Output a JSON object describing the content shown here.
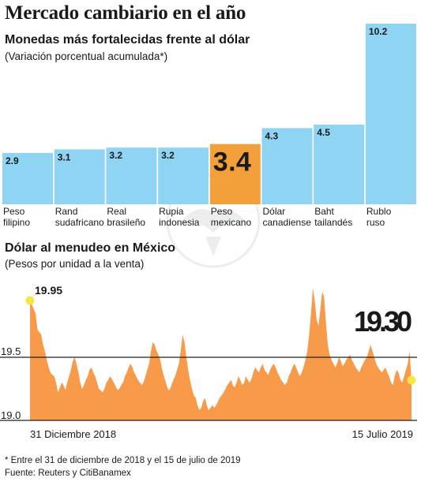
{
  "header": {
    "title": "Mercado cambiario en el año"
  },
  "chart_data": [
    {
      "type": "bar",
      "title": "Monedas más fortalecidas frente al dólar",
      "subtitle": "(Variación porcentual acumulada*)",
      "categories": [
        [
          "Peso",
          "filipino"
        ],
        [
          "Rand",
          "sudafricano"
        ],
        [
          "Real",
          "brasileño"
        ],
        [
          "Rupia",
          "indonesia"
        ],
        [
          "Peso",
          "mexicano"
        ],
        [
          "Dólar",
          "canadiense"
        ],
        [
          "Baht",
          "tailandés"
        ],
        [
          "Rublo",
          "ruso"
        ]
      ],
      "values": [
        2.9,
        3.1,
        3.2,
        3.2,
        3.4,
        4.3,
        4.5,
        10.2
      ],
      "value_labels": [
        "2.9",
        "3.1",
        "3.2",
        "3.2",
        "3.4",
        "4.3",
        "4.5",
        "10.2"
      ],
      "highlight_index": 4,
      "colors": {
        "bar": "#8fd4f2",
        "highlight": "#f4a03a",
        "text": "#1a1a1a"
      }
    },
    {
      "type": "area",
      "title": "Dólar al menudeo en México",
      "subtitle": "(Pesos por unidad a la venta)",
      "x_start_label": "31 Diciembre 2018",
      "x_end_label": "15 Julio 2019",
      "y_ticks": [
        "19.0",
        "19.5"
      ],
      "ylim": [
        19.0,
        20.0
      ],
      "start_value": 19.95,
      "start_label": "19.95",
      "end_value": 19.3,
      "end_label": "19.30",
      "reference_line": 19.5,
      "values": [
        19.95,
        19.92,
        19.88,
        19.85,
        19.72,
        19.7,
        19.68,
        19.6,
        19.55,
        19.48,
        19.42,
        19.38,
        19.36,
        19.35,
        19.3,
        19.22,
        19.26,
        19.3,
        19.28,
        19.24,
        19.3,
        19.35,
        19.4,
        19.47,
        19.5,
        19.45,
        19.38,
        19.3,
        19.25,
        19.28,
        19.32,
        19.35,
        19.4,
        19.42,
        19.38,
        19.35,
        19.3,
        19.25,
        19.24,
        19.22,
        19.25,
        19.3,
        19.32,
        19.35,
        19.33,
        19.3,
        19.27,
        19.24,
        19.25,
        19.28,
        19.3,
        19.35,
        19.38,
        19.42,
        19.45,
        19.42,
        19.38,
        19.35,
        19.32,
        19.3,
        19.28,
        19.3,
        19.35,
        19.4,
        19.45,
        19.55,
        19.62,
        19.6,
        19.55,
        19.52,
        19.48,
        19.4,
        19.35,
        19.3,
        19.25,
        19.24,
        19.28,
        19.32,
        19.35,
        19.4,
        19.45,
        19.55,
        19.68,
        19.62,
        19.5,
        19.4,
        19.32,
        19.25,
        19.2,
        19.18,
        19.12,
        19.08,
        19.1,
        19.15,
        19.18,
        19.12,
        19.08,
        19.1,
        19.12,
        19.1,
        19.12,
        19.15,
        19.18,
        19.2,
        19.22,
        19.25,
        19.28,
        19.3,
        19.32,
        19.28,
        19.26,
        19.3,
        19.35,
        19.32,
        19.28,
        19.3,
        19.35,
        19.32,
        19.3,
        19.33,
        19.38,
        19.42,
        19.4,
        19.38,
        19.42,
        19.45,
        19.4,
        19.38,
        19.36,
        19.4,
        19.43,
        19.45,
        19.42,
        19.38,
        19.35,
        19.32,
        19.3,
        19.28,
        19.3,
        19.35,
        19.38,
        19.42,
        19.45,
        19.42,
        19.38,
        19.35,
        19.38,
        19.42,
        19.48,
        19.55,
        19.68,
        19.85,
        20.05,
        19.95,
        19.8,
        19.75,
        19.88,
        20.02,
        19.98,
        19.78,
        19.6,
        19.52,
        19.48,
        19.45,
        19.42,
        19.45,
        19.5,
        19.47,
        19.43,
        19.45,
        19.48,
        19.5,
        19.52,
        19.48,
        19.45,
        19.42,
        19.4,
        19.38,
        19.42,
        19.45,
        19.48,
        19.5,
        19.55,
        19.6,
        19.55,
        19.5,
        19.45,
        19.42,
        19.4,
        19.38,
        19.4,
        19.42,
        19.38,
        19.35,
        19.3,
        19.28,
        19.35,
        19.4,
        19.38,
        19.32,
        19.3,
        19.35,
        19.4,
        19.45,
        19.55,
        19.3
      ],
      "colors": {
        "area": "#f79a4a",
        "dot": "#f5e642",
        "line": "#222222"
      }
    }
  ],
  "footer": {
    "footnote": "* Entre el 31 de diciembre de 2018 y el 15 de julio de 2019",
    "source": "Fuente: Reuters y CitiBanamex"
  }
}
